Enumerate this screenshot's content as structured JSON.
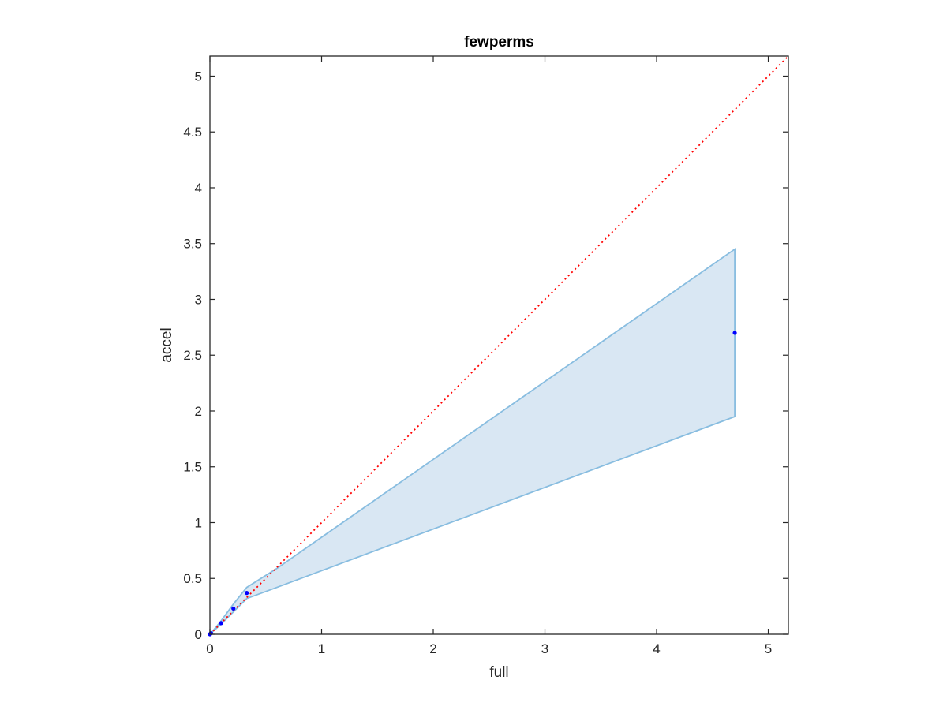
{
  "chart_data": {
    "type": "scatter",
    "title": "fewperms",
    "xlabel": "full",
    "ylabel": "accel",
    "xlim": [
      0,
      5.18
    ],
    "ylim": [
      0,
      5.18
    ],
    "xticks": [
      0,
      1,
      2,
      3,
      4,
      5
    ],
    "yticks": [
      0,
      0.5,
      1,
      1.5,
      2,
      2.5,
      3,
      3.5,
      4,
      4.5,
      5
    ],
    "xtick_labels": [
      "0",
      "1",
      "2",
      "3",
      "4",
      "5"
    ],
    "ytick_labels": [
      "0",
      "0.5",
      "1",
      "1.5",
      "2",
      "2.5",
      "3",
      "3.5",
      "4",
      "4.5",
      "5"
    ],
    "grid": false,
    "points": {
      "x": [
        0.0,
        0.005,
        0.01,
        0.1,
        0.21,
        0.33,
        4.7
      ],
      "y": [
        0.0,
        0.005,
        0.01,
        0.1,
        0.23,
        0.37,
        2.7
      ],
      "color": "#0000ff"
    },
    "band": {
      "x": [
        0.0,
        0.01,
        0.1,
        0.21,
        0.33,
        0.6,
        4.7
      ],
      "upper": [
        0.0,
        0.01,
        0.12,
        0.27,
        0.42,
        0.59,
        3.45
      ],
      "lower": [
        0.0,
        0.01,
        0.09,
        0.2,
        0.32,
        0.42,
        1.95
      ],
      "fill_color": "#d9e7f3",
      "line_color": "#88bde0"
    },
    "reference_line": {
      "x": [
        0,
        5.18
      ],
      "y": [
        0,
        5.18
      ],
      "style": "dotted",
      "color": "#ff0000"
    }
  }
}
